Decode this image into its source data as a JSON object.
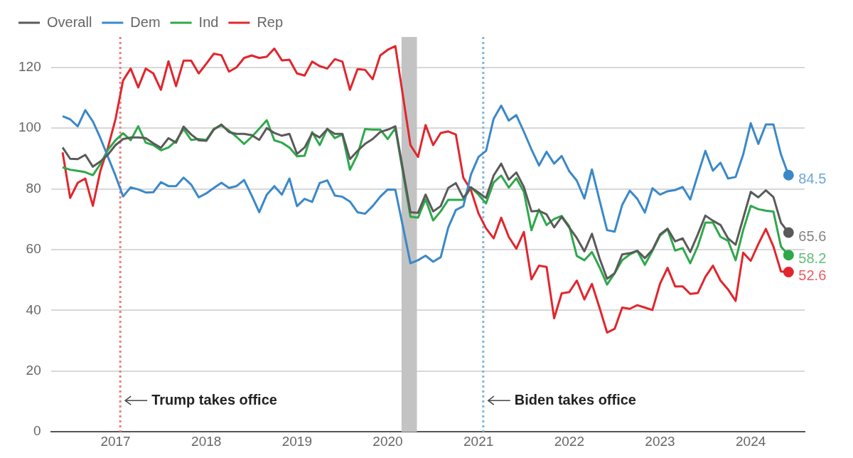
{
  "chart_data": {
    "type": "line",
    "x": [
      "2016-06",
      "2016-07",
      "2016-08",
      "2016-09",
      "2016-10",
      "2016-11",
      "2016-12",
      "2017-01",
      "2017-02",
      "2017-03",
      "2017-04",
      "2017-05",
      "2017-06",
      "2017-07",
      "2017-08",
      "2017-09",
      "2017-10",
      "2017-11",
      "2017-12",
      "2018-01",
      "2018-02",
      "2018-03",
      "2018-04",
      "2018-05",
      "2018-06",
      "2018-07",
      "2018-08",
      "2018-09",
      "2018-10",
      "2018-11",
      "2018-12",
      "2019-01",
      "2019-02",
      "2019-03",
      "2019-04",
      "2019-05",
      "2019-06",
      "2019-07",
      "2019-08",
      "2019-09",
      "2019-10",
      "2019-11",
      "2019-12",
      "2020-01",
      "2020-02",
      "2020-04",
      "2020-05",
      "2020-06",
      "2020-07",
      "2020-08",
      "2020-09",
      "2020-10",
      "2020-11",
      "2020-12",
      "2021-01",
      "2021-02",
      "2021-03",
      "2021-04",
      "2021-05",
      "2021-06",
      "2021-07",
      "2021-08",
      "2021-09",
      "2021-10",
      "2021-11",
      "2021-12",
      "2022-01",
      "2022-02",
      "2022-03",
      "2022-04",
      "2022-05",
      "2022-06",
      "2022-07",
      "2022-08",
      "2022-09",
      "2022-10",
      "2022-11",
      "2022-12",
      "2023-01",
      "2023-02",
      "2023-03",
      "2023-04",
      "2023-05",
      "2023-06",
      "2023-07",
      "2023-08",
      "2023-09",
      "2023-10",
      "2023-11",
      "2023-12",
      "2024-01",
      "2024-02",
      "2024-03",
      "2024-04",
      "2024-05",
      "2024-06"
    ],
    "series": [
      {
        "name": "Overall",
        "color": "#5a5a5a",
        "values": [
          93.6,
          89.9,
          89.8,
          91.2,
          87.3,
          89,
          91.3,
          94.4,
          96.4,
          96.9,
          96.9,
          96.7,
          95,
          93.5,
          96.7,
          95.2,
          100.5,
          97.9,
          96,
          95.8,
          99.5,
          101.2,
          98.7,
          98.1,
          98.1,
          97.7,
          96.1,
          100,
          98.4,
          97.5,
          98.1,
          91.5,
          93.6,
          98.3,
          96.9,
          99.7,
          98.1,
          98.1,
          89.8,
          92.5,
          94.8,
          96.4,
          98.7,
          99.5,
          100.6,
          72.3,
          72.1,
          78.1,
          72.6,
          74.3,
          80.3,
          81.9,
          77,
          80.5,
          78.8,
          77,
          84.4,
          88.3,
          83,
          85.4,
          80.6,
          72.6,
          72.8,
          71.6,
          67.3,
          70.8,
          67.3,
          63.8,
          59.4,
          65.2,
          57.2,
          50.4,
          52.2,
          58.4,
          58.8,
          59.6,
          57.2,
          59.9,
          65,
          66.9,
          62.7,
          63.7,
          59.2,
          65,
          71.2,
          69.5,
          68.1,
          63.7,
          61.6,
          70.3,
          79,
          77.2,
          79.5,
          77.3,
          68.8,
          65.6
        ],
        "value_labels": [
          null,
          null,
          null,
          null,
          null,
          null,
          null,
          null,
          null,
          null,
          null,
          null,
          null,
          null,
          null,
          null,
          null,
          null,
          null,
          null,
          null,
          null,
          null,
          null,
          null,
          null,
          null,
          null,
          null,
          null,
          null,
          null,
          null,
          null,
          null,
          null,
          null,
          null,
          null,
          null,
          null,
          null,
          null,
          null,
          null,
          null,
          null,
          null,
          null,
          null,
          null,
          null,
          null,
          null,
          null,
          null,
          null,
          null,
          null,
          null,
          null,
          null,
          null,
          null,
          null,
          null,
          null,
          null,
          null,
          null,
          null,
          null,
          null,
          null,
          null,
          null,
          null,
          null,
          null,
          null,
          null,
          null,
          null,
          null,
          null,
          null,
          null,
          null,
          null,
          null,
          null,
          null,
          null,
          null,
          null,
          "65.6"
        ]
      },
      {
        "name": "Dem",
        "color": "#3b88c9",
        "values": [
          103.9,
          102.9,
          100.6,
          105.9,
          102.2,
          96.7,
          90.5,
          84.3,
          77.5,
          80.5,
          79.8,
          78.8,
          78.9,
          82.2,
          80.9,
          80.9,
          83.7,
          81.4,
          77.2,
          78.5,
          80.3,
          82,
          80.3,
          80.9,
          82.9,
          77.8,
          72.3,
          78.1,
          80.9,
          78.1,
          83.4,
          74.3,
          76.7,
          75.7,
          81.9,
          82.8,
          77.8,
          77.4,
          75.8,
          72.3,
          71.8,
          74.3,
          77.4,
          79.8,
          79.7,
          55.5,
          56.5,
          58,
          56,
          57.5,
          67.3,
          73,
          74.3,
          84.7,
          90.5,
          92.5,
          103.1,
          107.4,
          102.5,
          104.3,
          98.8,
          93,
          87.7,
          92.2,
          88.3,
          90.8,
          85.8,
          82.7,
          76.8,
          86.4,
          76.3,
          66.4,
          65.9,
          74.7,
          79.4,
          76.7,
          72.2,
          80.2,
          78.1,
          79.2,
          79.6,
          80.6,
          76.5,
          84.6,
          92.5,
          86,
          88.6,
          83.4,
          83.9,
          91.3,
          101.6,
          94.8,
          101.2,
          101.2,
          91.3,
          84.5
        ],
        "value_labels": [
          null,
          null,
          null,
          null,
          null,
          null,
          null,
          null,
          null,
          null,
          null,
          null,
          null,
          null,
          null,
          null,
          null,
          null,
          null,
          null,
          null,
          null,
          null,
          null,
          null,
          null,
          null,
          null,
          null,
          null,
          null,
          null,
          null,
          null,
          null,
          null,
          null,
          null,
          null,
          null,
          null,
          null,
          null,
          null,
          null,
          null,
          null,
          null,
          null,
          null,
          null,
          null,
          null,
          null,
          null,
          null,
          null,
          null,
          null,
          null,
          null,
          null,
          null,
          null,
          null,
          null,
          null,
          null,
          null,
          null,
          null,
          null,
          null,
          null,
          null,
          null,
          null,
          null,
          null,
          null,
          null,
          null,
          null,
          null,
          null,
          null,
          null,
          null,
          null,
          null,
          null,
          null,
          null,
          null,
          null,
          "84.5"
        ]
      },
      {
        "name": "Ind",
        "color": "#2fa84b",
        "values": [
          87.1,
          86.3,
          85.9,
          85.5,
          84.5,
          88.2,
          92.9,
          96,
          98.3,
          96,
          100.6,
          95.2,
          94.4,
          92.7,
          93.6,
          95.8,
          99.7,
          96.1,
          96.4,
          96.1,
          99.8,
          100.8,
          99.2,
          97.1,
          94.8,
          97.1,
          99.8,
          102.6,
          96,
          95.2,
          93.6,
          90.7,
          90.9,
          98.7,
          94.4,
          99.8,
          96.7,
          97.9,
          86.3,
          91.3,
          99.7,
          99.5,
          99.5,
          96.4,
          100,
          70.8,
          70.5,
          76.6,
          69.6,
          72.6,
          76.4,
          76.4,
          76.4,
          80.5,
          78.1,
          75.2,
          82.1,
          84.4,
          80.4,
          83.5,
          79,
          66.4,
          73.2,
          68.1,
          70.1,
          71.1,
          67.7,
          57.9,
          56.5,
          59.2,
          54.2,
          48.5,
          52.2,
          56.5,
          58.4,
          59.6,
          55,
          59.6,
          64.6,
          66.7,
          59.7,
          60.5,
          55.5,
          61.1,
          68.9,
          68.9,
          64.2,
          62.9,
          56.5,
          66.4,
          74.4,
          73.3,
          72.8,
          72.5,
          61,
          58.2
        ],
        "value_labels": [
          null,
          null,
          null,
          null,
          null,
          null,
          null,
          null,
          null,
          null,
          null,
          null,
          null,
          null,
          null,
          null,
          null,
          null,
          null,
          null,
          null,
          null,
          null,
          null,
          null,
          null,
          null,
          null,
          null,
          null,
          null,
          null,
          null,
          null,
          null,
          null,
          null,
          null,
          null,
          null,
          null,
          null,
          null,
          null,
          null,
          null,
          null,
          null,
          null,
          null,
          null,
          null,
          null,
          null,
          null,
          null,
          null,
          null,
          null,
          null,
          null,
          null,
          null,
          null,
          null,
          null,
          null,
          null,
          null,
          null,
          null,
          null,
          null,
          null,
          null,
          null,
          null,
          null,
          null,
          null,
          null,
          null,
          null,
          null,
          null,
          null,
          null,
          null,
          null,
          null,
          null,
          null,
          null,
          null,
          null,
          "58.2"
        ]
      },
      {
        "name": "Rep",
        "color": "#e1262d",
        "values": [
          92,
          77,
          82,
          83.4,
          74.4,
          86,
          93.6,
          103,
          115.7,
          119.6,
          113.4,
          119.6,
          118,
          112.6,
          122,
          113.8,
          122.2,
          122.2,
          118,
          121.2,
          124.5,
          124,
          118.6,
          120,
          123.1,
          123.9,
          123.1,
          123.5,
          126.2,
          122.3,
          122.5,
          118,
          117.3,
          121.9,
          120.4,
          119.6,
          122.7,
          121.9,
          112.6,
          119.4,
          119.2,
          116.1,
          123.9,
          125.8,
          127,
          94.4,
          90.5,
          101,
          94.4,
          98.4,
          98.9,
          97.9,
          83.6,
          79.6,
          71.9,
          67,
          63.7,
          70.5,
          64.2,
          60.3,
          65.8,
          50.2,
          54.7,
          54.3,
          37.4,
          45.6,
          46,
          49.8,
          43.6,
          48.7,
          40.9,
          32.7,
          33.9,
          40.9,
          40.5,
          41.7,
          40.9,
          40.1,
          48.7,
          54,
          47.9,
          47.9,
          45.4,
          45.7,
          51,
          54.7,
          49.8,
          46.9,
          43.1,
          59,
          56.3,
          61.8,
          66.8,
          61,
          52.8,
          52.6
        ],
        "value_labels": [
          null,
          null,
          null,
          null,
          null,
          null,
          null,
          null,
          null,
          null,
          null,
          null,
          null,
          null,
          null,
          null,
          null,
          null,
          null,
          null,
          null,
          null,
          null,
          null,
          null,
          null,
          null,
          null,
          null,
          null,
          null,
          null,
          null,
          null,
          null,
          null,
          null,
          null,
          null,
          null,
          null,
          null,
          null,
          null,
          null,
          null,
          null,
          null,
          null,
          null,
          null,
          null,
          null,
          null,
          null,
          null,
          null,
          null,
          null,
          null,
          null,
          null,
          null,
          null,
          null,
          null,
          null,
          null,
          null,
          null,
          null,
          null,
          null,
          null,
          null,
          null,
          null,
          null,
          null,
          null,
          null,
          null,
          null,
          null,
          null,
          null,
          null,
          null,
          null,
          null,
          null,
          null,
          null,
          null,
          null,
          "52.6"
        ]
      }
    ],
    "xlim": [
      "2016-04-15",
      "2024-08-05"
    ],
    "xticks": [
      "2017",
      "2018",
      "2019",
      "2020",
      "2021",
      "2022",
      "2023",
      "2024"
    ],
    "ylim": [
      0,
      130
    ],
    "yticks": [
      0,
      20,
      40,
      60,
      80,
      100,
      120
    ],
    "grid": "y",
    "legend": "top left",
    "ref_lines": [
      {
        "axis": "x",
        "value": "2017-01-20",
        "label": "Trump takes office",
        "color": "#ec7e7e",
        "line_style": "dotted"
      },
      {
        "axis": "x",
        "value": "2021-01-20",
        "label": "Biden takes office",
        "color": "#7fb3dd",
        "line_style": "dotted"
      }
    ],
    "bands": [
      {
        "axis": "x",
        "from": "2020-02-26",
        "to": "2020-04-27",
        "color": "#c3c3c3"
      }
    ]
  }
}
